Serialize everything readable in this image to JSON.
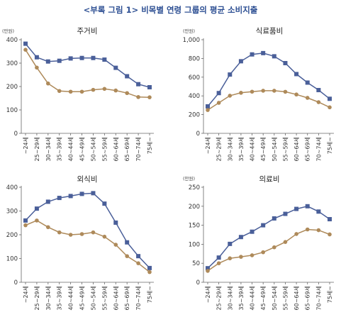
{
  "figure": {
    "title": "<부록 그림 1> 비목별 연령 그룹의 평균 소비지출"
  },
  "colors": {
    "series_dark": "#4a5f99",
    "series_light": "#ae8a5a"
  },
  "chart_data": [
    {
      "type": "line",
      "title": "주거비",
      "unit": "(만원)",
      "ylim": [
        0,
        400
      ],
      "yticks": [
        0,
        100,
        200,
        300,
        400
      ],
      "ytick_labels": [
        "0",
        "100",
        "200",
        "300",
        "400"
      ],
      "categories": [
        "~24세",
        "25~29세",
        "30~34세",
        "35~39세",
        "40~44세",
        "45~49세",
        "50~54세",
        "55~59세",
        "60~64세",
        "65~69세",
        "70~74세",
        "75세~"
      ],
      "series": [
        {
          "values": [
            383,
            325,
            307,
            310,
            320,
            322,
            322,
            315,
            280,
            244,
            210,
            197
          ]
        },
        {
          "values": [
            357,
            281,
            213,
            181,
            178,
            178,
            186,
            190,
            183,
            172,
            155,
            154
          ]
        }
      ],
      "grid": false
    },
    {
      "type": "line",
      "title": "식료품비",
      "unit": "(만원)",
      "ylim": [
        0,
        1000
      ],
      "yticks": [
        0,
        200,
        400,
        600,
        800,
        1000
      ],
      "ytick_labels": [
        "0",
        "200",
        "400",
        "600",
        "800",
        "1,000"
      ],
      "categories": [
        "~24세",
        "25~29세",
        "30~34세",
        "35~39세",
        "40~44세",
        "45~49세",
        "50~54세",
        "55~59세",
        "60~64세",
        "65~69세",
        "70~74세",
        "75세~"
      ],
      "series": [
        {
          "values": [
            288,
            430,
            628,
            770,
            843,
            857,
            823,
            750,
            633,
            542,
            462,
            369
          ]
        },
        {
          "values": [
            249,
            326,
            402,
            433,
            445,
            455,
            455,
            444,
            415,
            379,
            333,
            278
          ]
        }
      ],
      "grid": false
    },
    {
      "type": "line",
      "title": "외식비",
      "unit": "",
      "ylim": [
        0,
        400
      ],
      "yticks": [
        0,
        100,
        200,
        300,
        400
      ],
      "ytick_labels": [
        "0",
        "100",
        "200",
        "300",
        "400"
      ],
      "categories": [
        "~24세",
        "25~29세",
        "30~34세",
        "35~39세",
        "40~44세",
        "45~49세",
        "50~54세",
        "55~59세",
        "60~64세",
        "65~69세",
        "70~74세",
        "75세~"
      ],
      "series": [
        {
          "values": [
            260,
            310,
            339,
            355,
            363,
            372,
            375,
            331,
            251,
            168,
            110,
            60
          ]
        },
        {
          "values": [
            240,
            260,
            232,
            210,
            200,
            203,
            210,
            192,
            158,
            110,
            80,
            43
          ]
        }
      ],
      "grid": false
    },
    {
      "type": "line",
      "title": "의료비",
      "unit": "(만원)",
      "ylim": [
        0,
        250
      ],
      "yticks": [
        0,
        50,
        100,
        150,
        200,
        250
      ],
      "ytick_labels": [
        "0",
        "50",
        "100",
        "150",
        "200",
        "250"
      ],
      "categories": [
        "~24세",
        "25~29세",
        "30~34세",
        "35~39세",
        "40~44세",
        "45~49세",
        "50~54세",
        "55~59세",
        "60~64세",
        "65~69세",
        "70~74세",
        "75세~"
      ],
      "series": [
        {
          "values": [
            37,
            65,
            101,
            119,
            133,
            150,
            168,
            180,
            193,
            200,
            186,
            166
          ]
        },
        {
          "values": [
            30,
            50,
            63,
            67,
            71,
            79,
            92,
            106,
            127,
            139,
            137,
            126
          ]
        }
      ],
      "grid": false
    }
  ]
}
